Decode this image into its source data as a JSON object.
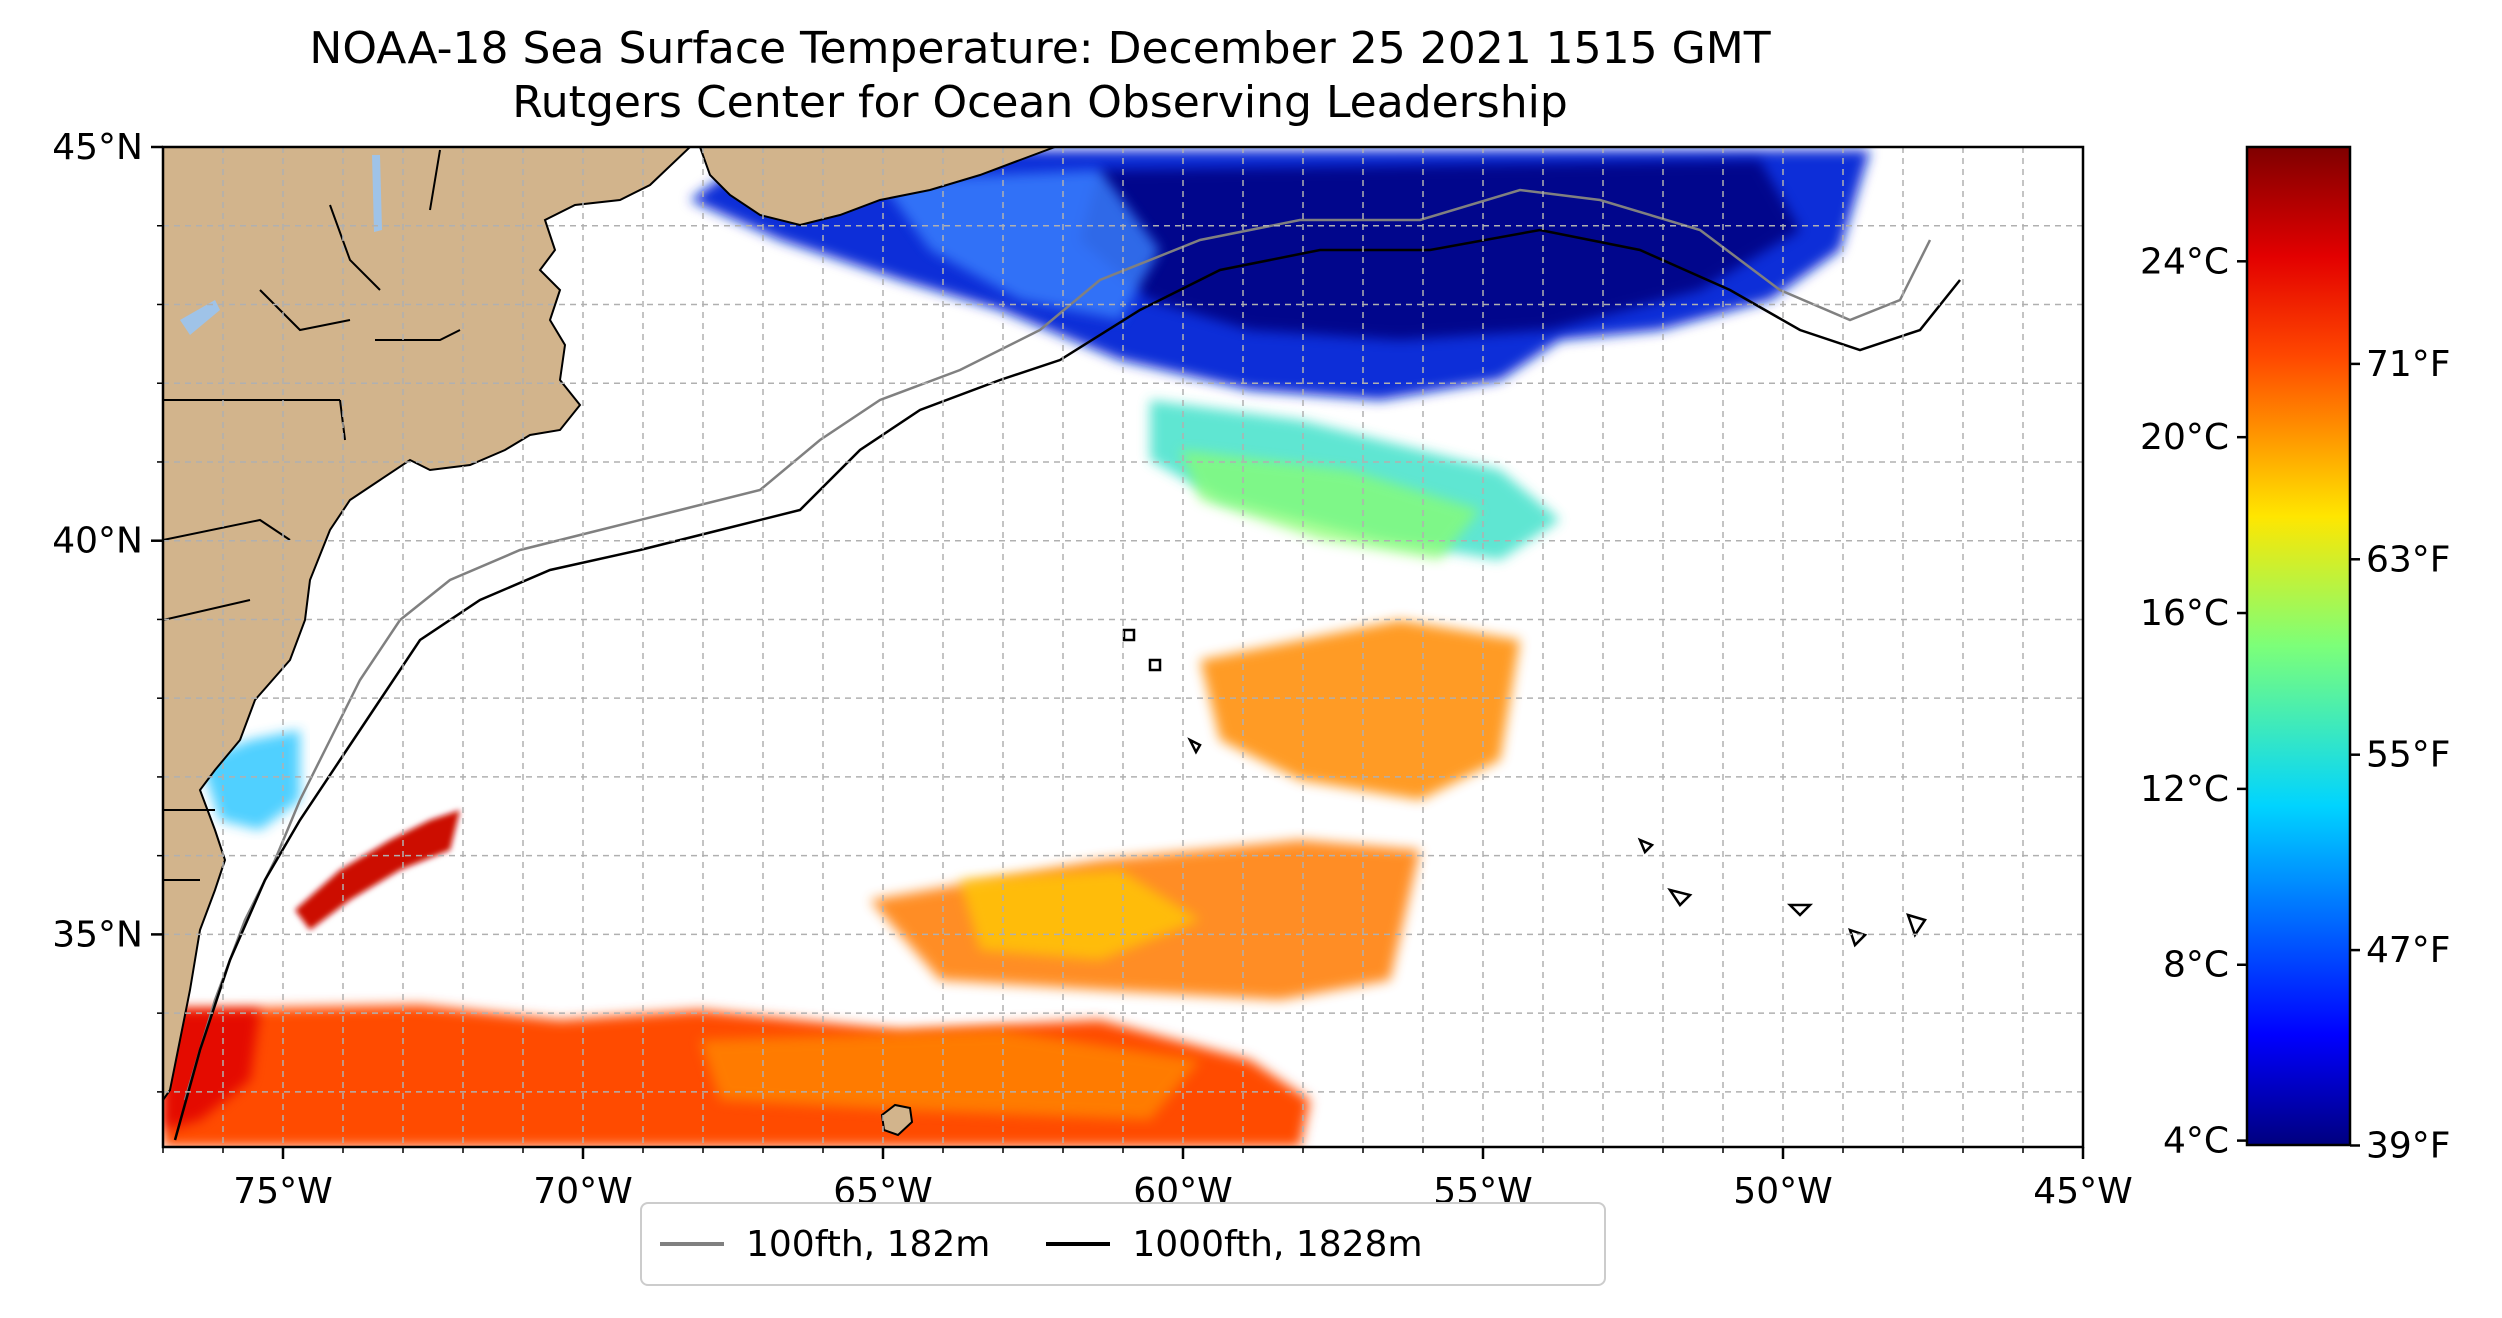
{
  "title": {
    "line1": "NOAA-18 Sea Surface Temperature: December 25 2021 1515 GMT",
    "line2": "Rutgers Center for Ocean Observing Leadership"
  },
  "axes": {
    "lon_range": [
      -77,
      -45
    ],
    "lat_range": [
      32.3,
      45
    ],
    "x_ticks": [
      -75,
      -70,
      -65,
      -60,
      -55,
      -50,
      -45
    ],
    "x_tick_labels": [
      "75°W",
      "70°W",
      "65°W",
      "60°W",
      "55°W",
      "50°W",
      "45°W"
    ],
    "y_ticks": [
      35,
      40,
      45
    ],
    "y_tick_labels": [
      "35°N",
      "40°N",
      "45°N"
    ],
    "grid": true
  },
  "colorbar": {
    "colormap": "jet",
    "celsius_range": [
      3.9,
      26.6
    ],
    "celsius_ticks": [
      4,
      8,
      12,
      16,
      20,
      24
    ],
    "celsius_labels": [
      "4°C",
      "8°C",
      "12°C",
      "16°C",
      "20°C",
      "24°C"
    ],
    "fahrenheit_ticks": [
      39,
      47,
      55,
      63,
      71
    ],
    "fahrenheit_labels": [
      "39°F",
      "47°F",
      "55°F",
      "63°F",
      "71°F"
    ]
  },
  "legend": {
    "items": [
      {
        "label": "100fth, 182m",
        "color": "#808080"
      },
      {
        "label": "1000fth, 1828m",
        "color": "#000000"
      }
    ]
  },
  "colors": {
    "land": "#d2b48c",
    "lakes": "#9fc3e8",
    "isobath_100fth": "#808080",
    "isobath_1000fth": "#000000"
  }
}
